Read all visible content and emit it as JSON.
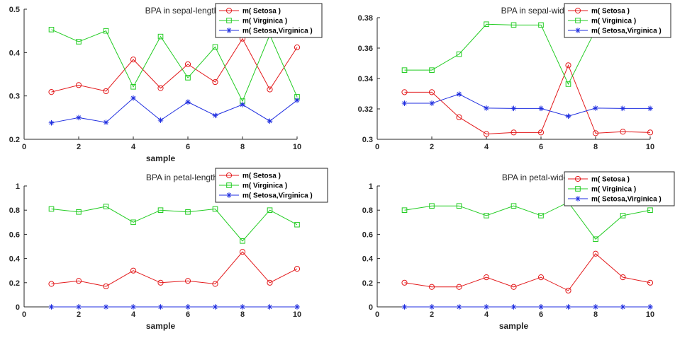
{
  "colors": {
    "red": "#e31a1c",
    "green": "#22cc22",
    "blue": "#1f2ee0",
    "axis": "#262626"
  },
  "chart_data": [
    {
      "type": "line",
      "title": "BPA in sepal-length",
      "xlabel": "sample",
      "ylabel": "",
      "xlim": [
        0,
        10
      ],
      "ylim": [
        0.2,
        0.5
      ],
      "xticks": [
        "0",
        "2",
        "4",
        "6",
        "8",
        "10"
      ],
      "yticks": [
        "0.2",
        "0.3",
        "0.4",
        "0.5"
      ],
      "legend_position": "top-right",
      "x": [
        1,
        2,
        3,
        4,
        5,
        6,
        7,
        8,
        9,
        10
      ],
      "series": [
        {
          "name": "m( Setosa )",
          "marker": "circle",
          "values": [
            0.309,
            0.325,
            0.311,
            0.384,
            0.318,
            0.373,
            0.332,
            0.432,
            0.315,
            0.412
          ]
        },
        {
          "name": "m( Virginica )",
          "marker": "square",
          "values": [
            0.453,
            0.425,
            0.45,
            0.321,
            0.437,
            0.342,
            0.413,
            0.288,
            0.441,
            0.298
          ]
        },
        {
          "name": "m( Setosa,Virginica )",
          "marker": "star",
          "values": [
            0.238,
            0.25,
            0.239,
            0.295,
            0.244,
            0.286,
            0.255,
            0.28,
            0.242,
            0.29
          ]
        }
      ]
    },
    {
      "type": "line",
      "title": "BPA in sepal-wide",
      "xlabel": "",
      "ylabel": "",
      "xlim": [
        0,
        10
      ],
      "ylim": [
        0.3,
        0.38
      ],
      "xticks": [
        "0",
        "2",
        "4",
        "6",
        "8",
        "10"
      ],
      "yticks": [
        "0.3",
        "0.32",
        "0.34",
        "0.36",
        "0.38"
      ],
      "legend_position": "top-right",
      "x": [
        1,
        2,
        3,
        4,
        5,
        6,
        7,
        8,
        9,
        10
      ],
      "series": [
        {
          "name": "m( Setosa )",
          "marker": "circle",
          "values": [
            0.331,
            0.331,
            0.3145,
            0.3035,
            0.3045,
            0.3045,
            0.3487,
            0.304,
            0.305,
            0.3045
          ]
        },
        {
          "name": "m( Virginica )",
          "marker": "square",
          "values": [
            0.3455,
            0.3455,
            0.356,
            0.3757,
            0.3752,
            0.3752,
            0.3363,
            0.372,
            0.372,
            0.372
          ]
        },
        {
          "name": "m( Setosa,Virginica )",
          "marker": "star",
          "values": [
            0.3237,
            0.3237,
            0.3297,
            0.3205,
            0.3203,
            0.3203,
            0.3152,
            0.3205,
            0.3203,
            0.3203
          ]
        }
      ]
    },
    {
      "type": "line",
      "title": "BPA in petal-length",
      "xlabel": "sample",
      "ylabel": "",
      "xlim": [
        0,
        10
      ],
      "ylim": [
        0,
        1
      ],
      "xticks": [
        "0",
        "2",
        "4",
        "6",
        "8",
        "10"
      ],
      "yticks": [
        "0",
        "0.2",
        "0.4",
        "0.6",
        "0.8",
        "1"
      ],
      "legend_position": "top-right",
      "x": [
        1,
        2,
        3,
        4,
        5,
        6,
        7,
        8,
        9,
        10
      ],
      "series": [
        {
          "name": "m( Setosa )",
          "marker": "circle",
          "values": [
            0.19,
            0.215,
            0.17,
            0.3,
            0.2,
            0.215,
            0.19,
            0.455,
            0.2,
            0.315
          ]
        },
        {
          "name": "m( Virginica )",
          "marker": "square",
          "values": [
            0.81,
            0.785,
            0.83,
            0.7,
            0.8,
            0.785,
            0.81,
            0.545,
            0.8,
            0.68
          ]
        },
        {
          "name": "m( Setosa,Virginica )",
          "marker": "star",
          "values": [
            0,
            0,
            0,
            0,
            0,
            0,
            0,
            0,
            0,
            0
          ]
        }
      ]
    },
    {
      "type": "line",
      "title": "BPA in petal-wide",
      "xlabel": "sample",
      "ylabel": "",
      "xlim": [
        0,
        10
      ],
      "ylim": [
        0,
        1
      ],
      "xticks": [
        "0",
        "2",
        "4",
        "6",
        "8",
        "10"
      ],
      "yticks": [
        "0",
        "0.2",
        "0.4",
        "0.6",
        "0.8",
        "1"
      ],
      "legend_position": "top-right",
      "x": [
        1,
        2,
        3,
        4,
        5,
        6,
        7,
        8,
        9,
        10
      ],
      "series": [
        {
          "name": "m( Setosa )",
          "marker": "circle",
          "values": [
            0.2,
            0.165,
            0.165,
            0.245,
            0.165,
            0.245,
            0.135,
            0.44,
            0.245,
            0.2
          ]
        },
        {
          "name": "m( Virginica )",
          "marker": "square",
          "values": [
            0.8,
            0.835,
            0.835,
            0.755,
            0.835,
            0.755,
            0.865,
            0.56,
            0.755,
            0.8
          ]
        },
        {
          "name": "m( Setosa,Virginica )",
          "marker": "star",
          "values": [
            0,
            0,
            0,
            0,
            0,
            0,
            0,
            0,
            0,
            0
          ]
        }
      ]
    }
  ]
}
